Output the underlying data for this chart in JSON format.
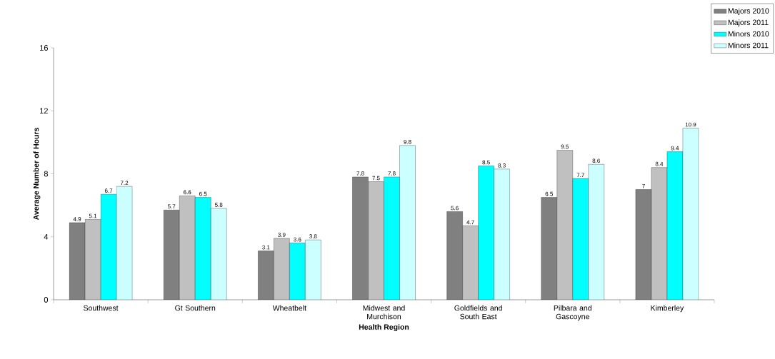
{
  "chart_data": {
    "type": "bar",
    "xlabel": "Health Region",
    "ylabel": "Average Number of Hours",
    "categories": [
      "Southwest",
      "Gt Southern",
      "Wheatbelt",
      "Midwest and Murchison",
      "Goldfields and South East",
      "Pilbara and Gascoyne",
      "Kimberley"
    ],
    "series": [
      {
        "name": "Majors 2010",
        "color": "#808080",
        "values": [
          4.9,
          5.7,
          3.1,
          7.8,
          5.6,
          6.5,
          7
        ]
      },
      {
        "name": "Majors 2011",
        "color": "#c0c0c0",
        "values": [
          5.1,
          6.6,
          3.9,
          7.5,
          4.7,
          9.5,
          8.4
        ]
      },
      {
        "name": "Minors 2010",
        "color": "#00ffff",
        "values": [
          6.7,
          6.5,
          3.6,
          7.8,
          8.5,
          7.7,
          9.4
        ]
      },
      {
        "name": "Minors 2011",
        "color": "#ccffff",
        "values": [
          7.2,
          5.8,
          3.8,
          9.8,
          8.3,
          8.6,
          10.9
        ]
      }
    ],
    "ylim": [
      0,
      16
    ],
    "yticks": [
      0,
      4,
      8,
      12,
      16
    ],
    "grid": false,
    "legend": "top right",
    "data_labels": true
  }
}
